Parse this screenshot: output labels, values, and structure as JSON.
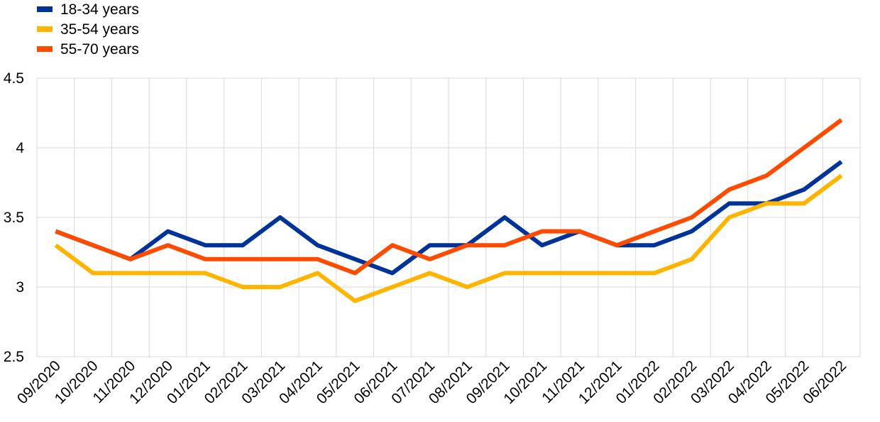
{
  "chart_data": {
    "type": "line",
    "title": "",
    "xlabel": "",
    "ylabel": "",
    "categories": [
      "09/2020",
      "10/2020",
      "11/2020",
      "12/2020",
      "01/2021",
      "02/2021",
      "03/2021",
      "04/2021",
      "05/2021",
      "06/2021",
      "07/2021",
      "08/2021",
      "09/2021",
      "10/2021",
      "11/2021",
      "12/2021",
      "01/2022",
      "02/2022",
      "03/2022",
      "04/2022",
      "05/2022",
      "06/2022"
    ],
    "ylim": [
      2.5,
      4.5
    ],
    "yticks": [
      "2.5",
      "3",
      "3.5",
      "4",
      "4.5"
    ],
    "grid": true,
    "legend_position": "top-left",
    "series": [
      {
        "name": "18-34 years",
        "color": "#003399",
        "values": [
          3.4,
          3.3,
          3.2,
          3.4,
          3.3,
          3.3,
          3.5,
          3.3,
          3.2,
          3.1,
          3.3,
          3.3,
          3.5,
          3.3,
          3.4,
          3.3,
          3.3,
          3.4,
          3.6,
          3.6,
          3.7,
          3.9
        ]
      },
      {
        "name": "35-54 years",
        "color": "#FFB400",
        "values": [
          3.3,
          3.1,
          3.1,
          3.1,
          3.1,
          3.0,
          3.0,
          3.1,
          2.9,
          3.0,
          3.1,
          3.0,
          3.1,
          3.1,
          3.1,
          3.1,
          3.1,
          3.2,
          3.5,
          3.6,
          3.6,
          3.8
        ]
      },
      {
        "name": "55-70 years",
        "color": "#FF4B00",
        "values": [
          3.4,
          3.3,
          3.2,
          3.3,
          3.2,
          3.2,
          3.2,
          3.2,
          3.1,
          3.3,
          3.2,
          3.3,
          3.3,
          3.4,
          3.4,
          3.3,
          3.4,
          3.5,
          3.7,
          3.8,
          4.0,
          4.2
        ]
      }
    ]
  }
}
